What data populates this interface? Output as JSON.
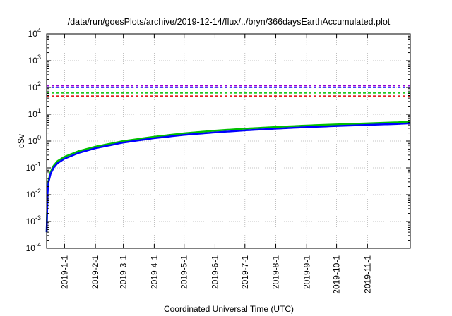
{
  "chart_data": {
    "type": "line",
    "title": "/data/run/goesPlots/archive/2019-12-14/flux/../bryn/366daysEarthAccumulated.plot",
    "xlabel": "Coordinated Universal Time (UTC)",
    "ylabel": "cSv",
    "yscale": "log",
    "ylim": [
      0.0001,
      10000
    ],
    "xlim": [
      "2018-12-14",
      "2019-12-14"
    ],
    "grid": true,
    "x_ticks": [
      "2019-1-1",
      "2019-2-1",
      "2019-3-1",
      "2019-4-1",
      "2019-5-1",
      "2019-6-1",
      "2019-7-1",
      "2019-8-1",
      "2019-9-1",
      "2019-10-1",
      "2019-11-1"
    ],
    "x_tick_dates": [
      "2019-01-01",
      "2019-02-01",
      "2019-03-01",
      "2019-04-01",
      "2019-05-01",
      "2019-06-01",
      "2019-07-01",
      "2019-08-01",
      "2019-09-01",
      "2019-10-01",
      "2019-11-01"
    ],
    "y_ticks": [
      {
        "value": 0.0001,
        "base": "10",
        "exp": "-4"
      },
      {
        "value": 0.001,
        "base": "10",
        "exp": "-3"
      },
      {
        "value": 0.01,
        "base": "10",
        "exp": "-2"
      },
      {
        "value": 0.1,
        "base": "10",
        "exp": "-1"
      },
      {
        "value": 1,
        "base": "10",
        "exp": "0"
      },
      {
        "value": 10,
        "base": "10",
        "exp": "1"
      },
      {
        "value": 100,
        "base": "10",
        "exp": "2"
      },
      {
        "value": 1000,
        "base": "10",
        "exp": "3"
      },
      {
        "value": 10000,
        "base": "10",
        "exp": "4"
      }
    ],
    "thresholds": [
      {
        "value": 115,
        "color": "#9400d3"
      },
      {
        "value": 100,
        "color": "#0000ff"
      },
      {
        "value": 62,
        "color": "#00c000"
      },
      {
        "value": 48,
        "color": "#e00000"
      }
    ],
    "series": [
      {
        "color": "#00c000",
        "x": [
          "2018-12-14",
          "2018-12-15",
          "2018-12-16",
          "2018-12-18",
          "2018-12-21",
          "2018-12-25",
          "2019-01-01",
          "2019-01-15",
          "2019-02-01",
          "2019-03-01",
          "2019-04-01",
          "2019-05-01",
          "2019-06-01",
          "2019-07-01",
          "2019-08-01",
          "2019-09-01",
          "2019-10-01",
          "2019-11-01",
          "2019-12-01",
          "2019-12-14"
        ],
        "y": [
          0.0004,
          0.015,
          0.035,
          0.07,
          0.12,
          0.18,
          0.26,
          0.42,
          0.62,
          1.0,
          1.45,
          1.95,
          2.45,
          2.9,
          3.35,
          3.8,
          4.2,
          4.6,
          5.0,
          5.3
        ]
      },
      {
        "color": "#0000ff",
        "x": [
          "2018-12-14",
          "2018-12-15",
          "2018-12-16",
          "2018-12-18",
          "2018-12-21",
          "2018-12-25",
          "2019-01-01",
          "2019-01-15",
          "2019-02-01",
          "2019-03-01",
          "2019-04-01",
          "2019-05-01",
          "2019-06-01",
          "2019-07-01",
          "2019-08-01",
          "2019-09-01",
          "2019-10-01",
          "2019-11-01",
          "2019-12-01",
          "2019-12-14"
        ],
        "y": [
          0.0004,
          0.012,
          0.03,
          0.06,
          0.1,
          0.15,
          0.22,
          0.36,
          0.54,
          0.88,
          1.28,
          1.7,
          2.1,
          2.5,
          2.9,
          3.3,
          3.65,
          4.0,
          4.35,
          4.6
        ]
      }
    ]
  }
}
